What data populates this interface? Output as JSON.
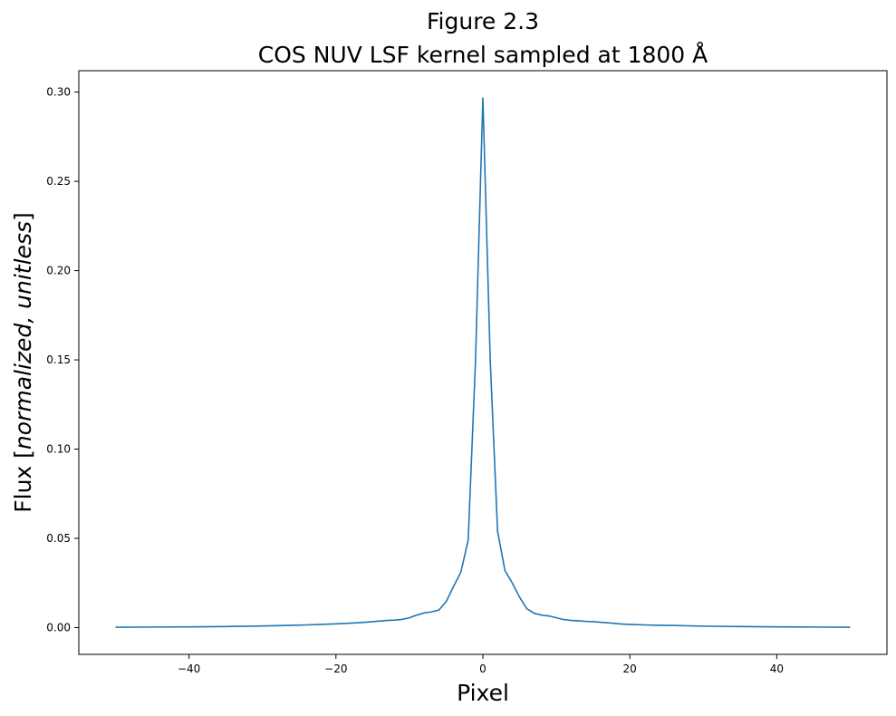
{
  "chart_data": {
    "type": "line",
    "title_line1": "Figure 2.3",
    "title_line2": "COS NUV LSF kernel sampled at 1800 Å",
    "xlabel": "Pixel",
    "ylabel": {
      "prefix": "Flux [",
      "italic": "normalized, unitless",
      "suffix": "]"
    },
    "xlim": [
      -55,
      55
    ],
    "ylim": [
      -0.015,
      0.312
    ],
    "x_ticks": [
      -40,
      -20,
      0,
      20,
      40
    ],
    "x_tick_labels": [
      "−40",
      "−20",
      "0",
      "20",
      "40"
    ],
    "y_ticks": [
      0.0,
      0.05,
      0.1,
      0.15,
      0.2,
      0.25,
      0.3
    ],
    "y_tick_labels": [
      "0.00",
      "0.05",
      "0.10",
      "0.15",
      "0.20",
      "0.25",
      "0.30"
    ],
    "grid": false,
    "line_color": "#1f77b4",
    "series": [
      {
        "x": [
          -50,
          -45,
          -40,
          -35,
          -30,
          -28,
          -26,
          -24,
          -22,
          -20,
          -18,
          -16,
          -15,
          -14,
          -13,
          -12,
          -11,
          -10,
          -9,
          -8,
          -7,
          -6,
          -5,
          -4,
          -3,
          -2,
          -1,
          0,
          1,
          2,
          3,
          4,
          5,
          6,
          7,
          8,
          9,
          10,
          11,
          12,
          13,
          14,
          15,
          16,
          17,
          18,
          19,
          20,
          22,
          24,
          26,
          28,
          30,
          35,
          40,
          45,
          50
        ],
        "y": [
          0.0002,
          0.0003,
          0.0004,
          0.0006,
          0.0009,
          0.0011,
          0.0013,
          0.0015,
          0.0018,
          0.0021,
          0.0025,
          0.003,
          0.0033,
          0.0037,
          0.004,
          0.0042,
          0.0046,
          0.0055,
          0.007,
          0.0082,
          0.0088,
          0.0098,
          0.0145,
          0.023,
          0.031,
          0.049,
          0.15,
          0.297,
          0.15,
          0.054,
          0.032,
          0.025,
          0.017,
          0.0105,
          0.008,
          0.007,
          0.0065,
          0.0055,
          0.0045,
          0.004,
          0.0038,
          0.0035,
          0.0033,
          0.003,
          0.0027,
          0.0023,
          0.002,
          0.0018,
          0.0015,
          0.0013,
          0.0012,
          0.001,
          0.0008,
          0.0006,
          0.0004,
          0.0003,
          0.0002
        ]
      }
    ]
  }
}
